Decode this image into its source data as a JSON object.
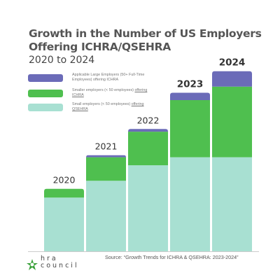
{
  "header": {
    "title": "Growth in the Number of US Employers Offering ICHRA/QSEHRA",
    "subtitle": "2020 to 2024"
  },
  "legend": [
    {
      "pre": "Applicable Large Employers (50+ Full-Time Employees) offering ICHRA",
      "post": "",
      "color": "#6b6bb8"
    },
    {
      "pre": "Smaller employers (< 50 employees) ",
      "post": "offering ICHRA",
      "color": "#4fbf4f"
    },
    {
      "pre": "Small employers (< 50 employees) ",
      "post": "offering QSEHRA",
      "color": "#a8e0d2"
    }
  ],
  "chart_data": {
    "type": "bar",
    "stacked": true,
    "categories": [
      "2020",
      "2021",
      "2022",
      "2023",
      "2024"
    ],
    "series": [
      {
        "name": "Small employers (< 50 employees) offering QSEHRA",
        "color": "#a8e0d2",
        "values": [
          80,
          105,
          128,
          140,
          140
        ]
      },
      {
        "name": "Smaller employers (< 50 employees) offering ICHRA",
        "color": "#4fbf4f",
        "values": [
          13,
          35,
          50,
          85,
          105
        ]
      },
      {
        "name": "Applicable Large Employers (50+ Full-Time Employees) offering ICHRA",
        "color": "#6b6bb8",
        "values": [
          0,
          3,
          4,
          11,
          23
        ]
      }
    ],
    "axes_shown": false,
    "grid": false
  },
  "footer": {
    "source": "Source: “Growth Trends for ICHRA & QSEHRA: 2023-2024”",
    "logo_line1": "hra",
    "logo_line2": "council"
  }
}
